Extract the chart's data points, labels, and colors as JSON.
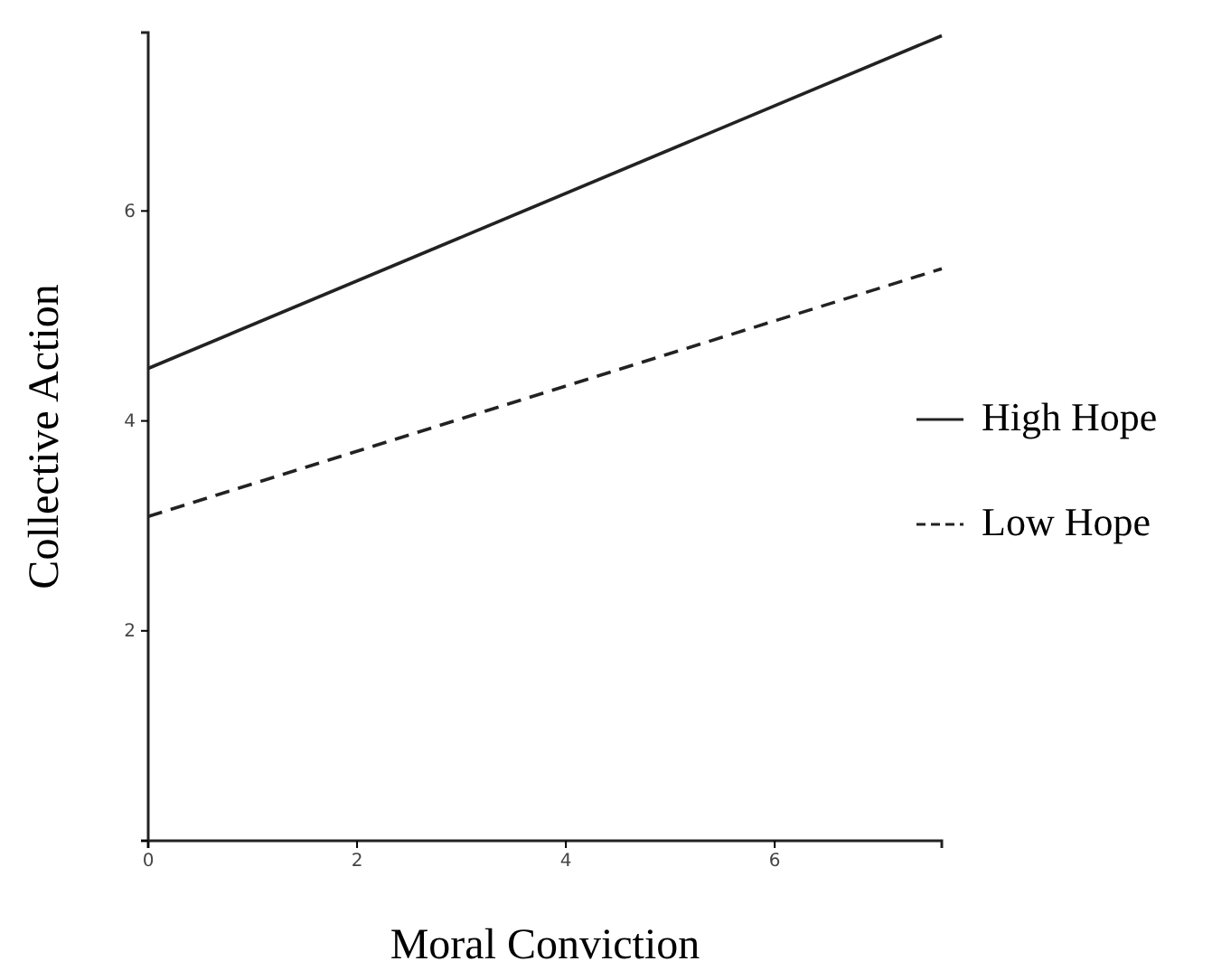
{
  "chart_data": {
    "type": "line",
    "xlabel": "Moral Conviction",
    "ylabel": "Collective Action",
    "x": [
      0,
      7.6
    ],
    "xlim": [
      0,
      7.6
    ],
    "ylim": [
      0,
      7.7
    ],
    "xticks": [
      0,
      2,
      4,
      6
    ],
    "yticks": [
      {
        "value": 0,
        "label": null
      },
      2,
      4,
      6
    ],
    "legend": "right",
    "grid": false,
    "marker": "none",
    "series": [
      {
        "name": "High Hope",
        "color": "#222222",
        "line_style": "solid",
        "values": [
          4.5,
          7.67
        ]
      },
      {
        "name": "Low Hope",
        "color": "#222222",
        "line_style": "dashed",
        "values": [
          3.09,
          5.45
        ]
      }
    ]
  }
}
